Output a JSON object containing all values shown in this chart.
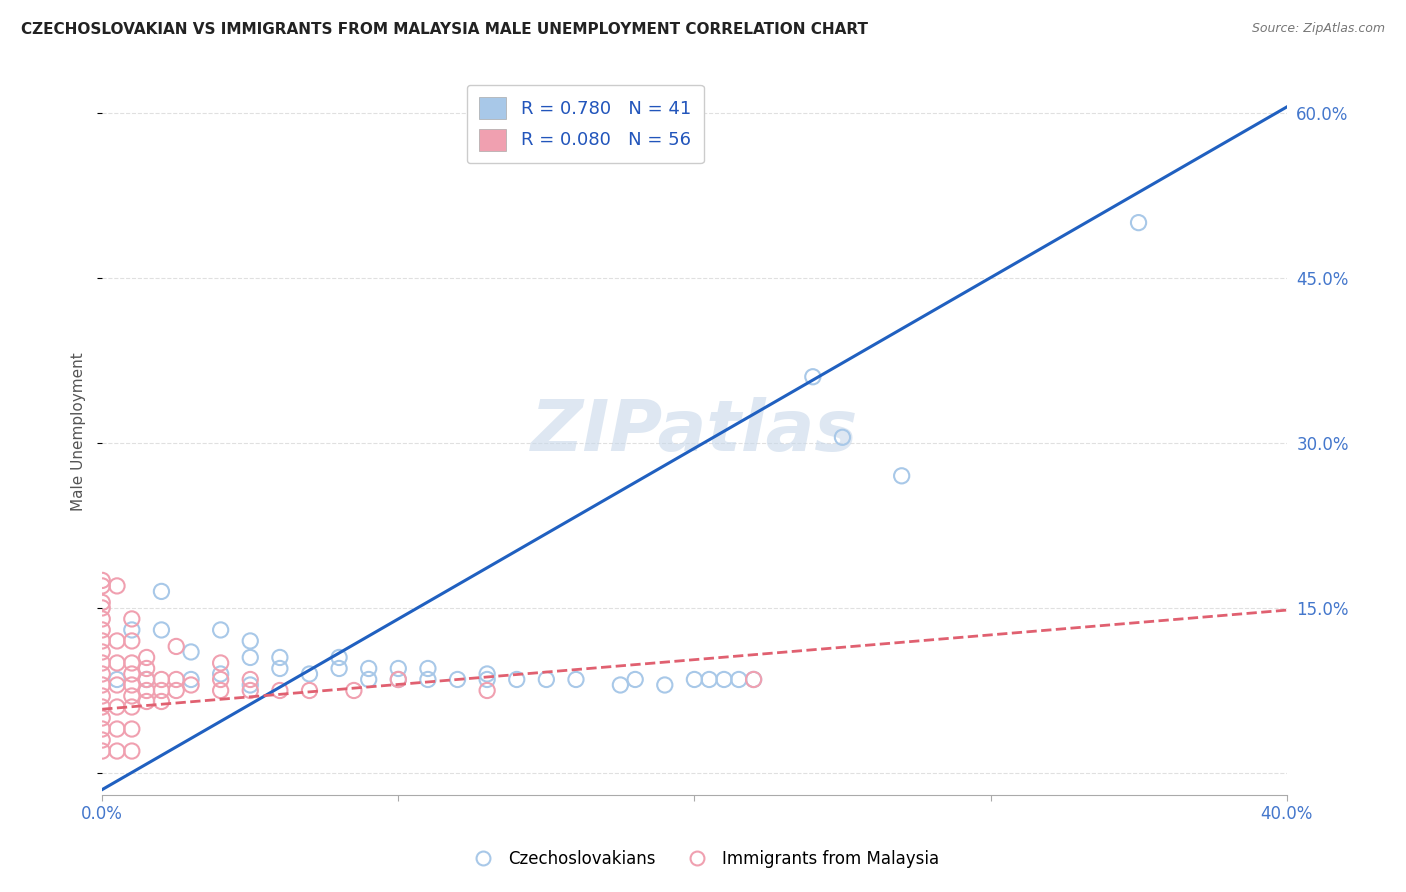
{
  "title": "CZECHOSLOVAKIAN VS IMMIGRANTS FROM MALAYSIA MALE UNEMPLOYMENT CORRELATION CHART",
  "source": "Source: ZipAtlas.com",
  "ylabel": "Male Unemployment",
  "xlim": [
    0.0,
    0.4
  ],
  "ylim": [
    -0.02,
    0.64
  ],
  "yticks": [
    0.0,
    0.15,
    0.3,
    0.45,
    0.6
  ],
  "ytick_labels_right": [
    "",
    "15.0%",
    "30.0%",
    "45.0%",
    "60.0%"
  ],
  "xticks": [
    0.0,
    0.1,
    0.2,
    0.3,
    0.4
  ],
  "xtick_labels": [
    "0.0%",
    "",
    "",
    "",
    "40.0%"
  ],
  "blue_color": "#a8c8e8",
  "pink_color": "#f0a0b0",
  "blue_line_color": "#2060c0",
  "pink_line_color": "#e06070",
  "watermark": "ZIPatlas",
  "blue_line_x0": 0.0,
  "blue_line_y0": -0.015,
  "blue_line_x1": 0.4,
  "blue_line_y1": 0.605,
  "pink_line_x0": 0.0,
  "pink_line_y0": 0.058,
  "pink_line_x1": 0.4,
  "pink_line_y1": 0.148,
  "scatter_blue": [
    [
      0.005,
      0.085
    ],
    [
      0.01,
      0.13
    ],
    [
      0.015,
      0.085
    ],
    [
      0.02,
      0.165
    ],
    [
      0.02,
      0.13
    ],
    [
      0.03,
      0.11
    ],
    [
      0.03,
      0.085
    ],
    [
      0.04,
      0.13
    ],
    [
      0.04,
      0.09
    ],
    [
      0.05,
      0.105
    ],
    [
      0.05,
      0.12
    ],
    [
      0.05,
      0.08
    ],
    [
      0.06,
      0.095
    ],
    [
      0.06,
      0.105
    ],
    [
      0.07,
      0.09
    ],
    [
      0.08,
      0.095
    ],
    [
      0.08,
      0.105
    ],
    [
      0.09,
      0.085
    ],
    [
      0.09,
      0.095
    ],
    [
      0.1,
      0.095
    ],
    [
      0.1,
      0.085
    ],
    [
      0.11,
      0.095
    ],
    [
      0.11,
      0.085
    ],
    [
      0.12,
      0.085
    ],
    [
      0.13,
      0.09
    ],
    [
      0.13,
      0.085
    ],
    [
      0.14,
      0.085
    ],
    [
      0.15,
      0.085
    ],
    [
      0.16,
      0.085
    ],
    [
      0.175,
      0.08
    ],
    [
      0.18,
      0.085
    ],
    [
      0.19,
      0.08
    ],
    [
      0.2,
      0.085
    ],
    [
      0.205,
      0.085
    ],
    [
      0.21,
      0.085
    ],
    [
      0.215,
      0.085
    ],
    [
      0.22,
      0.085
    ],
    [
      0.24,
      0.36
    ],
    [
      0.25,
      0.305
    ],
    [
      0.27,
      0.27
    ],
    [
      0.35,
      0.5
    ]
  ],
  "scatter_pink": [
    [
      0.0,
      0.02
    ],
    [
      0.0,
      0.03
    ],
    [
      0.0,
      0.04
    ],
    [
      0.0,
      0.05
    ],
    [
      0.0,
      0.06
    ],
    [
      0.0,
      0.07
    ],
    [
      0.0,
      0.08
    ],
    [
      0.0,
      0.09
    ],
    [
      0.0,
      0.1
    ],
    [
      0.0,
      0.11
    ],
    [
      0.0,
      0.12
    ],
    [
      0.0,
      0.13
    ],
    [
      0.0,
      0.14
    ],
    [
      0.0,
      0.15
    ],
    [
      0.0,
      0.17
    ],
    [
      0.005,
      0.02
    ],
    [
      0.005,
      0.04
    ],
    [
      0.005,
      0.06
    ],
    [
      0.005,
      0.08
    ],
    [
      0.005,
      0.1
    ],
    [
      0.005,
      0.12
    ],
    [
      0.01,
      0.02
    ],
    [
      0.01,
      0.04
    ],
    [
      0.01,
      0.06
    ],
    [
      0.01,
      0.07
    ],
    [
      0.01,
      0.08
    ],
    [
      0.01,
      0.09
    ],
    [
      0.01,
      0.1
    ],
    [
      0.01,
      0.12
    ],
    [
      0.01,
      0.14
    ],
    [
      0.015,
      0.065
    ],
    [
      0.015,
      0.075
    ],
    [
      0.015,
      0.085
    ],
    [
      0.015,
      0.095
    ],
    [
      0.015,
      0.105
    ],
    [
      0.02,
      0.065
    ],
    [
      0.02,
      0.075
    ],
    [
      0.02,
      0.085
    ],
    [
      0.025,
      0.075
    ],
    [
      0.025,
      0.085
    ],
    [
      0.03,
      0.08
    ],
    [
      0.04,
      0.075
    ],
    [
      0.04,
      0.085
    ],
    [
      0.04,
      0.1
    ],
    [
      0.05,
      0.075
    ],
    [
      0.05,
      0.085
    ],
    [
      0.06,
      0.075
    ],
    [
      0.07,
      0.075
    ],
    [
      0.085,
      0.075
    ],
    [
      0.1,
      0.085
    ],
    [
      0.13,
      0.075
    ],
    [
      0.22,
      0.085
    ],
    [
      0.005,
      0.17
    ],
    [
      0.0,
      0.175
    ],
    [
      0.0,
      0.155
    ],
    [
      0.025,
      0.115
    ]
  ],
  "background_color": "#ffffff",
  "grid_color": "#e0e0e0"
}
